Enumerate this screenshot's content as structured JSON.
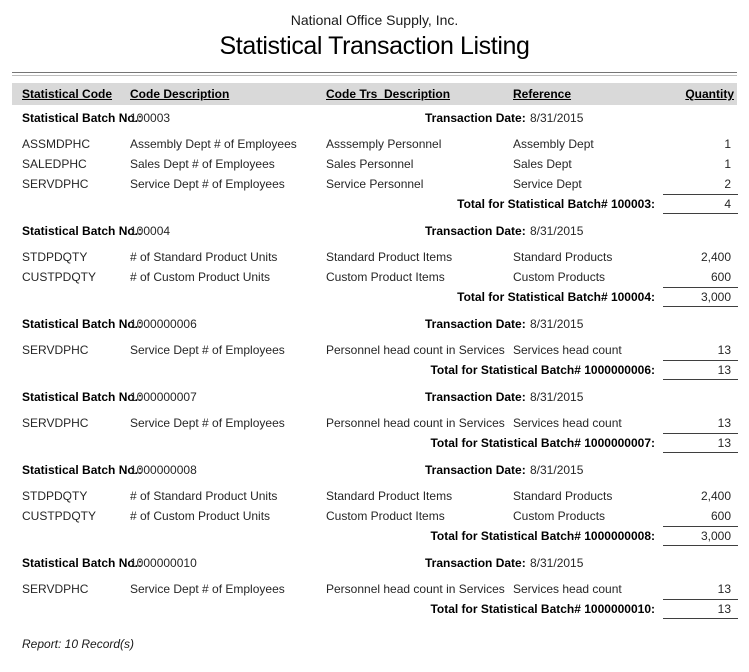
{
  "report": {
    "company": "National Office Supply, Inc.",
    "title": "Statistical Transaction Listing",
    "footer": "Report: 10 Record(s)"
  },
  "columns": [
    "Statistical Code",
    "Code Description",
    "Code Trs  Description",
    "Reference",
    "Quantity"
  ],
  "labels": {
    "batch": "Statistical Batch No.:",
    "date": "Transaction Date:"
  },
  "colors": {
    "header_band": "#d9d9d9",
    "rule_dark": "#757575",
    "rule_light": "#bdbdbd",
    "total_rule": "#3f3f3f"
  },
  "batches": [
    {
      "batch_no": "100003",
      "date": "8/31/2015",
      "rows": [
        {
          "code": "ASSMDPHC",
          "code_desc": "Assembly Dept # of Employees",
          "trs_desc": "Asssemply Personnel",
          "reference": "Assembly Dept",
          "qty": "1"
        },
        {
          "code": "SALEDPHC",
          "code_desc": "Sales Dept # of Employees",
          "trs_desc": "Sales Personnel",
          "reference": "Sales Dept",
          "qty": "1"
        },
        {
          "code": "SERVDPHC",
          "code_desc": "Service Dept # of Employees",
          "trs_desc": "Service Personnel",
          "reference": "Service Dept",
          "qty": "2"
        }
      ],
      "total_label": "Total for Statistical Batch# 100003:",
      "total": "4"
    },
    {
      "batch_no": "100004",
      "date": "8/31/2015",
      "rows": [
        {
          "code": "STDPDQTY",
          "code_desc": "# of Standard Product Units",
          "trs_desc": "Standard Product Items",
          "reference": "Standard Products",
          "qty": "2,400"
        },
        {
          "code": "CUSTPDQTY",
          "code_desc": "# of Custom Product Units",
          "trs_desc": "Custom Product Items",
          "reference": "Custom Products",
          "qty": "600"
        }
      ],
      "total_label": "Total for Statistical Batch# 100004:",
      "total": "3,000"
    },
    {
      "batch_no": "1000000006",
      "date": "8/31/2015",
      "rows": [
        {
          "code": "SERVDPHC",
          "code_desc": "Service Dept # of Employees",
          "trs_desc": "Personnel head count in Services",
          "reference": "Services head count",
          "qty": "13"
        }
      ],
      "total_label": "Total for Statistical Batch# 1000000006:",
      "total": "13"
    },
    {
      "batch_no": "1000000007",
      "date": "8/31/2015",
      "rows": [
        {
          "code": "SERVDPHC",
          "code_desc": "Service Dept # of Employees",
          "trs_desc": "Personnel head count in Services",
          "reference": "Services head count",
          "qty": "13"
        }
      ],
      "total_label": "Total for Statistical Batch# 1000000007:",
      "total": "13"
    },
    {
      "batch_no": "1000000008",
      "date": "8/31/2015",
      "rows": [
        {
          "code": "STDPDQTY",
          "code_desc": "# of Standard Product Units",
          "trs_desc": "Standard Product Items",
          "reference": "Standard Products",
          "qty": "2,400"
        },
        {
          "code": "CUSTPDQTY",
          "code_desc": "# of Custom Product Units",
          "trs_desc": "Custom Product Items",
          "reference": "Custom Products",
          "qty": "600"
        }
      ],
      "total_label": "Total for Statistical Batch# 1000000008:",
      "total": "3,000"
    },
    {
      "batch_no": "1000000010",
      "date": "8/31/2015",
      "rows": [
        {
          "code": "SERVDPHC",
          "code_desc": "Service Dept # of Employees",
          "trs_desc": "Personnel head count in Services",
          "reference": "Services head count",
          "qty": "13"
        }
      ],
      "total_label": "Total for Statistical Batch# 1000000010:",
      "total": "13"
    }
  ]
}
